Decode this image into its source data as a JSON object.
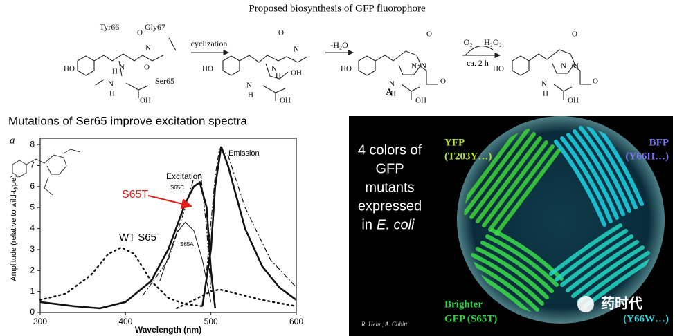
{
  "header": {
    "title": "Proposed biosynthesis of GFP fluorophore"
  },
  "scheme": {
    "residues": [
      "Tyr66",
      "Gly67",
      "Ser65"
    ],
    "steps": [
      "cyclization",
      "-H₂O",
      "O₂",
      "H₂O₂",
      "ca. 2 h"
    ],
    "intermediate_label": "A",
    "structures": [
      {
        "atoms": [
          "HO",
          "O",
          "N",
          "O",
          "N",
          "H",
          "N",
          "H",
          "OH"
        ]
      },
      {
        "atoms": [
          "HO",
          "O",
          "N",
          "N",
          "H",
          "OH",
          "N",
          "H",
          "OH"
        ]
      },
      {
        "atoms": [
          "HO",
          "O",
          "N",
          "N",
          "O",
          "N",
          "H",
          "OH"
        ]
      },
      {
        "atoms": [
          "HO",
          "O",
          "N",
          "N",
          "O",
          "N",
          "H",
          "OH"
        ]
      }
    ]
  },
  "spectra": {
    "heading": "Mutations of Ser65 improve excitation spectra",
    "panel_letter": "a",
    "xlabel": "Wavelength (nm)",
    "ylabel": "Amplitude (relative to wild-type)",
    "xlim": [
      300,
      600
    ],
    "ylim": [
      0,
      8.3
    ],
    "xticks": [
      300,
      400,
      500,
      600
    ],
    "yticks": [
      0,
      1,
      2,
      3,
      4,
      5,
      6,
      7,
      8
    ],
    "labels": [
      "Emission",
      "Excitation",
      "S65C",
      "S65A",
      "WT S65"
    ],
    "highlight_label": "S65T",
    "highlight_color": "#e0201a",
    "curves": [
      {
        "style": "dotted",
        "x": [
          300,
          330,
          360,
          380,
          395,
          410,
          430,
          450,
          470,
          490
        ],
        "y": [
          0.6,
          0.9,
          1.8,
          2.8,
          3.1,
          2.8,
          1.5,
          0.7,
          0.4,
          0.3
        ]
      },
      {
        "style": "dotted",
        "x": [
          460,
          480,
          500,
          510,
          530,
          560,
          600
        ],
        "y": [
          0.2,
          0.6,
          1.0,
          1.1,
          0.9,
          0.6,
          0.3
        ]
      },
      {
        "style": "thick",
        "x": [
          300,
          340,
          370,
          400,
          430,
          450,
          470,
          480,
          487,
          495,
          500,
          505
        ],
        "y": [
          0.5,
          0.3,
          0.2,
          0.5,
          1.5,
          3.0,
          5.2,
          6.0,
          6.2,
          5.0,
          2.0,
          0.2
        ]
      },
      {
        "style": "thick",
        "x": [
          490,
          500,
          505,
          512,
          520,
          540,
          560,
          580,
          600
        ],
        "y": [
          0.3,
          3.0,
          6.0,
          7.9,
          7.0,
          4.0,
          2.2,
          1.2,
          0.6
        ]
      },
      {
        "style": "dashdot",
        "x": [
          420,
          450,
          470,
          480,
          488,
          495,
          500
        ],
        "y": [
          0.8,
          2.5,
          5.0,
          6.4,
          6.6,
          4.0,
          1.0
        ]
      },
      {
        "style": "dashdot",
        "x": [
          495,
          505,
          510,
          520,
          540,
          570,
          600
        ],
        "y": [
          2.0,
          6.5,
          7.8,
          7.5,
          5.0,
          2.5,
          1.2
        ]
      },
      {
        "style": "thin",
        "x": [
          440,
          460,
          470,
          480,
          490,
          500
        ],
        "y": [
          1.5,
          3.8,
          4.3,
          3.9,
          2.5,
          0.5
        ]
      }
    ]
  },
  "plate": {
    "caption_lines": [
      "4 colors of",
      "GFP",
      "mutants",
      "expressed"
    ],
    "caption_in": "in",
    "caption_species": "E. coli",
    "yfp": [
      "YFP",
      "(T203Y…)"
    ],
    "bfp": [
      "BFP",
      "(Y66H…)"
    ],
    "gfp": [
      "Brighter",
      "GFP (S65T)"
    ],
    "cfp": "(Y66W…)",
    "credit": "R. Heim, A. Cubitt",
    "watermark": "药时代"
  }
}
